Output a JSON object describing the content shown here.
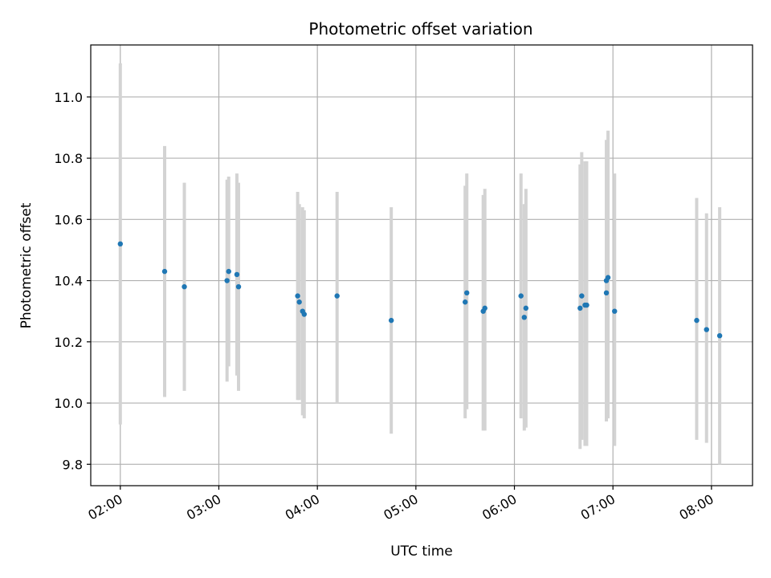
{
  "chart_data": {
    "type": "scatter",
    "title": "Photometric offset variation",
    "xlabel": "UTC time",
    "ylabel": "Photometric offset",
    "xlim": [
      "01:42",
      "08:25"
    ],
    "ylim": [
      9.73,
      11.17
    ],
    "x_ticks": [
      "02:00",
      "03:00",
      "04:00",
      "05:00",
      "06:00",
      "07:00",
      "08:00"
    ],
    "y_ticks": [
      9.8,
      10.0,
      10.2,
      10.4,
      10.6,
      10.8,
      11.0
    ],
    "y_tick_labels": [
      "9.8",
      "10.0",
      "10.2",
      "10.4",
      "10.6",
      "10.8",
      "11.0"
    ],
    "grid": true,
    "colors": {
      "points": "#1f77b4",
      "error_bars": "#d3d3d3",
      "grid": "#b0b0b0"
    },
    "points": [
      {
        "x": "02:00",
        "y": 10.52,
        "ymin": 9.93,
        "ymax": 11.11
      },
      {
        "x": "02:27",
        "y": 10.43,
        "ymin": 10.02,
        "ymax": 10.84
      },
      {
        "x": "02:39",
        "y": 10.38,
        "ymin": 10.04,
        "ymax": 10.72
      },
      {
        "x": "03:05",
        "y": 10.4,
        "ymin": 10.07,
        "ymax": 10.73
      },
      {
        "x": "03:06",
        "y": 10.43,
        "ymin": 10.12,
        "ymax": 10.74
      },
      {
        "x": "03:11",
        "y": 10.42,
        "ymin": 10.09,
        "ymax": 10.75
      },
      {
        "x": "03:12",
        "y": 10.38,
        "ymin": 10.04,
        "ymax": 10.72
      },
      {
        "x": "03:48",
        "y": 10.35,
        "ymin": 10.01,
        "ymax": 10.69
      },
      {
        "x": "03:49",
        "y": 10.33,
        "ymin": 10.01,
        "ymax": 10.65
      },
      {
        "x": "03:51",
        "y": 10.3,
        "ymin": 9.96,
        "ymax": 10.64
      },
      {
        "x": "03:52",
        "y": 10.29,
        "ymin": 9.95,
        "ymax": 10.63
      },
      {
        "x": "04:12",
        "y": 10.35,
        "ymin": 10.0,
        "ymax": 10.69
      },
      {
        "x": "04:45",
        "y": 10.27,
        "ymin": 9.9,
        "ymax": 10.64
      },
      {
        "x": "05:30",
        "y": 10.33,
        "ymin": 9.95,
        "ymax": 10.71
      },
      {
        "x": "05:31",
        "y": 10.36,
        "ymin": 9.98,
        "ymax": 10.75
      },
      {
        "x": "05:41",
        "y": 10.3,
        "ymin": 9.91,
        "ymax": 10.68
      },
      {
        "x": "05:42",
        "y": 10.31,
        "ymin": 9.91,
        "ymax": 10.7
      },
      {
        "x": "06:04",
        "y": 10.35,
        "ymin": 9.95,
        "ymax": 10.75
      },
      {
        "x": "06:06",
        "y": 10.28,
        "ymin": 9.91,
        "ymax": 10.65
      },
      {
        "x": "06:07",
        "y": 10.31,
        "ymin": 9.92,
        "ymax": 10.7
      },
      {
        "x": "06:40",
        "y": 10.31,
        "ymin": 9.85,
        "ymax": 10.78
      },
      {
        "x": "06:41",
        "y": 10.35,
        "ymin": 9.88,
        "ymax": 10.82
      },
      {
        "x": "06:43",
        "y": 10.32,
        "ymin": 9.86,
        "ymax": 10.79
      },
      {
        "x": "06:44",
        "y": 10.32,
        "ymin": 9.86,
        "ymax": 10.79
      },
      {
        "x": "06:56",
        "y": 10.36,
        "ymin": 9.94,
        "ymax": 10.78
      },
      {
        "x": "06:56",
        "y": 10.4,
        "ymin": 9.94,
        "ymax": 10.86
      },
      {
        "x": "06:57",
        "y": 10.41,
        "ymin": 9.95,
        "ymax": 10.89
      },
      {
        "x": "07:01",
        "y": 10.3,
        "ymin": 9.86,
        "ymax": 10.75
      },
      {
        "x": "07:51",
        "y": 10.27,
        "ymin": 9.88,
        "ymax": 10.67
      },
      {
        "x": "07:57",
        "y": 10.24,
        "ymin": 9.87,
        "ymax": 10.62
      },
      {
        "x": "08:05",
        "y": 10.22,
        "ymin": 9.8,
        "ymax": 10.64
      }
    ]
  }
}
